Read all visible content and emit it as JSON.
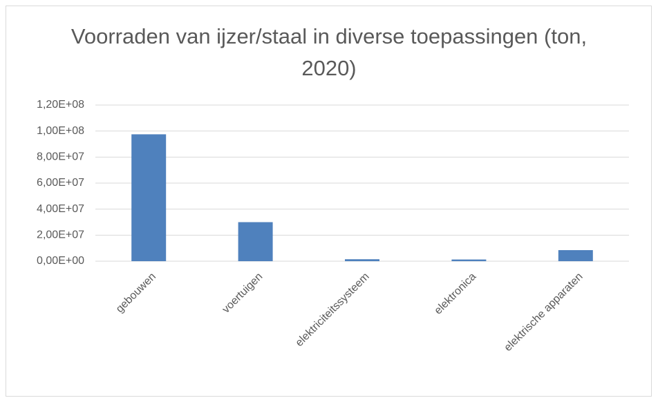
{
  "chart_data": {
    "type": "bar",
    "title": "Voorraden van ijzer/staal in diverse toepassingen (ton, 2020)",
    "categories": [
      "gebouwen",
      "voertuigen",
      "elektriciteitssysteem",
      "elektronica",
      "elektrische apparaten"
    ],
    "values": [
      97500000,
      30000000,
      1500000,
      1300000,
      8500000
    ],
    "color": "#4f81bd",
    "ylim": [
      0,
      120000000
    ],
    "yticks": [
      {
        "value": 0,
        "label": "0,00E+00"
      },
      {
        "value": 20000000,
        "label": "2,00E+07"
      },
      {
        "value": 40000000,
        "label": "4,00E+07"
      },
      {
        "value": 60000000,
        "label": "6,00E+07"
      },
      {
        "value": 80000000,
        "label": "8,00E+07"
      },
      {
        "value": 100000000,
        "label": "1,00E+08"
      },
      {
        "value": 120000000,
        "label": "1,20E+08"
      }
    ],
    "grid": true
  }
}
